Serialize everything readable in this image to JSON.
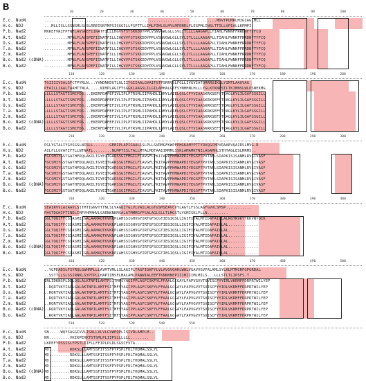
{
  "panel_label": "B",
  "species": [
    "E.c. NuoN",
    "H.s. ND2",
    "P.b. Nad2",
    "A.t. Nad2",
    "O.s. Nad2",
    "T.a. Nad2",
    "Z.m. Nad2",
    "B.o. Nad2 (cDNA)",
    "B.o. Nad2"
  ],
  "blocks": [
    {
      "ticks": [
        "10",
        "20",
        "30",
        "40",
        "50",
        "60",
        "70",
        "80",
        "90",
        "100"
      ],
      "seqs": [
        "..........................................................................MDVTPUMRLMIGIAGLMLL",
        "...MLLISLLSSNGMLSLSLRREISNTMPSISGGILLFSPTTLLIMLFIMLSLMYLMFDNRLFLEGPMLINSLTTILLVPIALLKPMPI",
        "MKKEFVRIFPFNFLAVSPEFIINATFILLLHGVVFSTSKKDDYPPLVSNVGWLGLLSVLITLLLLAAGAPLLTIAHLFWNNFFRRDNFTYFCQ",
        "..........MFNLFLAVSPEFIINATFILLIHGVVFSTSKKDDYPPLVSNVGWLGLLSVLITLLLLAAGAPLLTIAHLFWNNFFRRDNFTYFCQ",
        "..........MFNLFLAVSPEFIINATFILLIHGVVFSTSKKDDYPPLVSNVGWLGLLSVLITLLLLAAGAPLLTIAHLFWNNFFRRDNFTYFCQ",
        "..........MFNLFLAVSPEFIINATFILLIHGVVFSTSKKDDYPPLVSNVGWLGLLSVLITLLLLAAGAPLLTIAHLFWNNFFRRDNFTYFCQ",
        "..........MFNLFLAVSPEFIINATFILLIHGVVFSTSKKDDYPPLVSNVGWLGLLSVLITLLLLAAGAPLLTIAHLFWNNFFRRDNFTYFCQ",
        "..........MFNLFLAVSPEFIINATFILLIHGVVFSTSKKDDYPPLVSNVGWLGLLSVLITLLLLAAGAPLLTIAHLFWNNFFRRDNFTYFCQ",
        "..........MFNLFLAVSPEFIINATFILLIHGVVFSTSKKDDYPPLVSNVGWLGLLSVLITLLLLAAGAPLLTIAHLFWNNFFRRDNFTYFCQ"
      ]
    },
    {
      "ticks": [
        "110",
        "120",
        "130",
        "140",
        "150",
        "160",
        "170",
        "180",
        "190",
        "200"
      ],
      "seqs": [
        "TGIIIIVSALSFCTPYRLN...YVNDNKDGTLGLIIYGIIAALGVAITGTPSRRVSLFGLLIVGVIATQRRRGIKLLYIMTLAAGVAG",
        "PFAILLIAALTAAHTTNLA.....NIMPLAGIFYSGGKLAAGSLILGILAMHALGTFSYNHHNLHLLLYGLKTKNPSTLTKIMNSLWLPSNEKMG",
        "LLLLLSTAGTISMCFDS...EKERFDAFEFIVLIPLPTRSMLIIPAHDLIAMYLAIELQSLCFYVIAASKRKSEFSTEAGLKYLILGAFSSGILL",
        "LLLLLSTAGTISMCFDS...EKERFDAFEFIVLIPLPTRSMLIIPAHDLIAMYLAIELQSLCFYVIAASKRKSEFSTEAGLKYLILGAFSSGILL",
        "LLLLLSTAGTISMCFDS...EKERFDAFEFIVLIPLPTRSMLIIPAHDLIAMYLAIELQSLCFYVIAASKRKSEFSTEAGLKYLILGAFSSGILL",
        "LLLLLSTAGTISMCFDS...EKERFDAFEFIVLIPLPTRSMLIIPAHDLIAMYLAIELQSLCFYVIAASKRKSEFSTEAGLKYLILGAFSSGILL",
        "LLLLLSTAGTISMCFDS...EKERFDAFEFIVLIPLPTRSMLIIPAHDLIAMYLAIELQSLCFYVIAASKRKSEFSTEAGLKYLILGAFSSGILL",
        "LLLLLSTAGTISMCFDS...EKERFDAFEFIVLIPLPTRSMLIIPAHDLIAMYLAIELQSLCFYVIAASKRKSEFSTEAGLKYLILGAFSSGILL",
        "LLLLLSTAGTISMCFDS...EKERFDAFEFIVLIPLPTRSMLIIPAHDLIAMYLAIELQSLCFYVIAASKRKSEFSTEAGLKYLILGAFSSGILL"
      ]
    },
    {
      "ticks": [
        "210",
        "220",
        "230",
        "240",
        "250",
        "260",
        "270",
        "280",
        "290",
        "300"
      ],
      "seqs": [
        "PGLYGTALIYGVSGSLNISLL.......GEEIPLAPIGAALLSLPLLSVRMGFKWPFPHGKAMYPTTYRVQGCMPVRAAEVQAIRSLMVG.D",
        "AILFLLGVAFIFTLLNTNATL........NLMPTISLTALLMTALMQTAAIIMMMLSSKLAMAMKTNILAGAMHLSTHTAGLESLMRMS..",
        "FGCSMIYGSTGATHFDQLAKILTGYEITGARSSGIFMGILFIAVGFLFKITAVPFHMWAPDIYEGSPTPVTAFLSIAPKISISANMLRVSIVASF",
        "FGCSMIYGSTGATHFDQLAKILTGYEITGARSSGIFMGILFIAVGFLFKITAVPFHMWAPDIYEGSPTPVTAFLSIAPKISISANMLRVSIVASF",
        "FGCSMIYGSTGATHFDQLAKILTGYEITGARSSGIFMGILFIAVGFLFKITAVPFHMWAPDIYEGSPTPVTAFLSIAPKISISANMLRVSIVASF",
        "FGCSMIYGSTGATHFDQLAKILTGYEITGARSSGIFMGILFIAVGFLFKITAVPFHMWAPDIYEGSPTPVTAFLSIAPKISISANMLRVSIVASF",
        "FGCSMIYGSTGATHFDQLAKILTGYEITGARSSGIFMGILFIAVGFLFKITAVPFHMWAPDIYEGSPTPVTAFLSIAPKISISANMLRVSIVASF",
        "FGCSMIYGSTGATHFDQLAKILTGYEITGARSSGIFMGILFIAVGFLFKITAVPFHMWAPDIYEGSPTPVTAFLSIAPKISISANMLRVSIVASF",
        "FGCSMIYGSTGATHFDQLAKILTGYEITGARSSGIFMGILFIAVGFLFKITAVPFHMWAPDIYEGSPTPVTAFLSIAPKISISANMLRVSIVASF"
      ]
    },
    {
      "ticks": [
        "310",
        "320",
        "330",
        "340",
        "350",
        "360",
        "370",
        "380",
        "390",
        "400"
      ],
      "seqs": [
        "SEAIRVVLAIAAVLSITMTIGNVTTTNLSLVAGQITGLVLVAILALGTGSMSEAVCVYLAGYLFSSLAGFGVVLSMSP...........",
        "PHSTDGHIFTINDLIMFYHPMHVLSARNKNKMSALATMMMGYFSALAGLSLLTLMGSTLYGMISKLFLLN.........",
        "GGLTQQIFFCSIASMIIGALAAMAQTKVKRPLAHSSIGHVGYIRTGFSCGTIEGIQSLLIGIFIYALMTIDAFAIVLALRQTRVKYYKKVNYQIK",
        "GGLTQQIFFCSIASMIIGALAAMAQTKVKRPLAHSSIGHVGYIRTGFSCGTIEGIQSLLIGIFIYALMTIDAFAIVLAL.............",
        "GGLTQQIFFCSIASMIIGALAAMAQTKVKRPLAHSSIGHVGYIRTGFSCGTIEGIQSLLIGIFIYALMTIDAFAIVLAL.............",
        "GGLTQQIFFCSIASMIIGALAAMAQTKVKRPLAHSSIGHVGYIRTGFSCGTIEGIQSLLIGIFIYALMTIDAFAIVLAL.............",
        "GGLTQQIFFCSIASMIIGALAAMAQTKVKRPLAHSSIGHVGYIRTGFSCGTIEGIQSLLIGIFIYALMTIDAFAIVLAL.............",
        "GGLTQQIFFCSIASMIIGALAAMAQTKVKRPLAHSSIGHVGYIRTGFSCGTIEGIQSLLIGIFIYALMTIDAFAIVLAL.............",
        "GGLTQQIFFCSIASMIIGALAAMAQTKVKRPLAHSSIGHVGYIRTGFSCGTIEGIQSLLIGIFIYALMTIDAFAIVLAL............."
      ]
    },
    {
      "ticks": [
        "410",
        "420",
        "430",
        "440",
        "450",
        "460",
        "470",
        "480",
        "490",
        "500"
      ],
      "seqs": [
        "..YGPDADSLFSYRQLGWHRPLLLAVMTVMLLSLAGIPLTAGFIGKFYLVLAVGVQAHLWWLVGAVVGVFALAMLSYLKLMTMCRFGPGRDAL",
        "..SSTTLLSLSSIRNKLSYPTPLLHAPIIMSFLMALAMLPAWWIALEEFTKNNHNEPIIIMIIIMLMILS...LLLSTLTLIPSFS.T....",
        "INLIDKNSPLDDLQGLALKTNPILAMTFSITMFSYAGIPPLAGFCSKFYLFFAALGCGAYLFAPVGVVTSVISCFYYIRLVKRMFFDRPRTWILYEP",
        "..RQRTVKYIADLGALAKTNPILAMTFSITMFSYAGIPPLAGFCSKFYLFFAALGCGAYLFAPVGVVTSVISCFYYIRLVKRMFFDRPRTWILYEP",
        "..RQRTVKYIADLGALAKTNPILAMTFSITMFSYAGIPPLAGFCSKFYLFFAALGCGAYLFAPVGVVTSVISCFYYIRLVKRMFFDRPRTWILYEP",
        "..RQRTVKYIADLGALAKTNPILAMTFSITMFSYAGIPPLAGFCSKFYLFFAALGCGAYLFAPVGVVTSVISCFYYIRLVKRMFFDRPRTWILYEP",
        "..RQRTVKYIADLGALAKTNPILAMTFSITMFSYAGIPPLAGFCSKFYLFFAALGCGAYLFAPVGVVTSVISCFYYIRLVKRMFFDRPRTWILYEP",
        "..RQRTVKYIADLGALAKTNPILAMTFSITMFSYAGIPPLAGFCSKFYLFFAALGCGAYLFAPVGVVTSVISCFYYIRLVKRMFFDRPRTWILYEP",
        "..RQRTVKYIADLGALAKTNPILAMTFSITMFSYAGIPPLAGFCSKFYLFFAALGCGAYLFAPVGVVTSVISCFYYIRLVKRMFFDRPRTWILYEP"
      ]
    },
    {
      "ticks": [
        "510",
        "520",
        "530",
        "540",
        "550"
      ],
      "seqs": [
        "SN.....WQYSAGGIVVLISALLVLVLGVWPQPLISIVRLAMPLM..",
        "NN.........VKIKPEHKTSTSMLPLIIPSLLLLLL........",
        "LKPEFYPSSISLFPSTLIIFLLFFIPLPLDLSGSCFVTA.....",
        "MD.........RDKSLLLAMTSSFITSSFPYPSPLFDLTHQMALSSLYL",
        "MD.........RDKSLLLAMTSSFITSSFPYPSPLFDLTHQMALSSLYL",
        "MD.........RDKSLLLAMTSSFITSSFPYPSPLFDLTHQMALSSLYL",
        "MD.........RDKSLLLAMTSSFITSSFPYPSPLFDLTHQMALSSLYL",
        "MD.........RDKSLLLAMTSSFITSSFPYPSPLFDLTHQMALSSLYL",
        "MD.........RDKSLLLAMTSSFITSSFPYPSPLFDLTHQMALSSLYL"
      ]
    }
  ]
}
